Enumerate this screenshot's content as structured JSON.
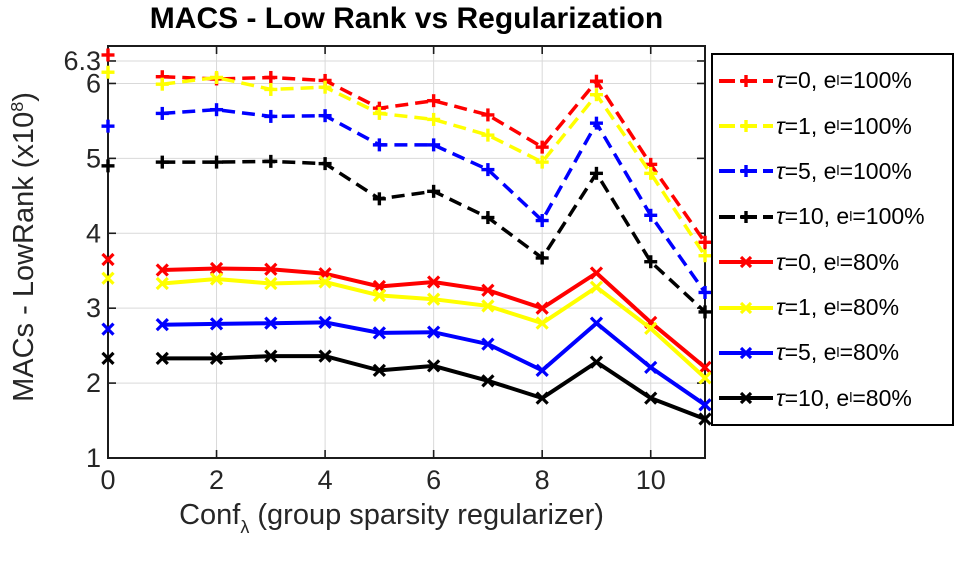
{
  "figure": {
    "title": "MACS - Low Rank vs Regularization",
    "xlabel": {
      "pre": "Conf",
      "sub": "λ",
      "post": " (group sparsity regularizer)"
    },
    "ylabel": {
      "pre": "MACs - LowRank (x10",
      "sup": "8",
      "post": ")"
    }
  },
  "chart_data": {
    "type": "line",
    "title": "MACS - Low Rank vs Regularization",
    "xlabel": "Conf_λ (group sparsity regularizer)",
    "ylabel": "MACs - LowRank (x10^8)",
    "x": [
      0,
      1,
      2,
      3,
      4,
      5,
      6,
      7,
      8,
      9,
      10,
      11
    ],
    "xlim": [
      0,
      11
    ],
    "ylim": [
      1,
      6.5
    ],
    "xticks": [
      0,
      2,
      4,
      6,
      8,
      10
    ],
    "xtick_labels": [
      "0",
      "2",
      "4",
      "6",
      "8",
      "10"
    ],
    "yticks": [
      1,
      2,
      3,
      4,
      5,
      6,
      6.3
    ],
    "ytick_labels": [
      "1",
      "2",
      "3",
      "4",
      "5",
      "6",
      "6.3"
    ],
    "grid": true,
    "legend_position": "outside-right",
    "line_starts_at_index": 1,
    "series": [
      {
        "name": "τ=0, e_l=100%",
        "label": {
          "pre": "τ=0, e",
          "sub": "l",
          "post": "=100%"
        },
        "color": "#ff0000",
        "line_style": "dashed",
        "marker": "plus",
        "values": [
          6.38,
          6.09,
          6.06,
          6.08,
          6.04,
          5.67,
          5.77,
          5.58,
          5.15,
          6.03,
          4.92,
          3.88
        ]
      },
      {
        "name": "τ=1, e_l=100%",
        "label": {
          "pre": "τ=1, e",
          "sub": "l",
          "post": "=100%"
        },
        "color": "#ffff00",
        "line_style": "dashed",
        "marker": "plus",
        "values": [
          6.15,
          5.99,
          6.08,
          5.92,
          5.95,
          5.6,
          5.52,
          5.31,
          4.95,
          5.85,
          4.8,
          3.7
        ]
      },
      {
        "name": "τ=5, e_l=100%",
        "label": {
          "pre": "τ=5, e",
          "sub": "l",
          "post": "=100%"
        },
        "color": "#0000ff",
        "line_style": "dashed",
        "marker": "plus",
        "values": [
          5.43,
          5.6,
          5.65,
          5.56,
          5.57,
          5.18,
          5.18,
          4.85,
          4.17,
          5.47,
          4.24,
          3.21
        ]
      },
      {
        "name": "τ=10, e_l=100%",
        "label": {
          "pre": "τ=10, e",
          "sub": "l",
          "post": "=100%"
        },
        "color": "#000000",
        "line_style": "dashed",
        "marker": "plus",
        "values": [
          4.9,
          4.95,
          4.95,
          4.96,
          4.93,
          4.46,
          4.56,
          4.21,
          3.67,
          4.8,
          3.62,
          2.95
        ]
      },
      {
        "name": "τ=0, e_l=80%",
        "label": {
          "pre": "τ=0, e",
          "sub": "l",
          "post": "=80%"
        },
        "color": "#ff0000",
        "line_style": "solid",
        "marker": "x",
        "values": [
          3.65,
          3.51,
          3.53,
          3.52,
          3.46,
          3.29,
          3.35,
          3.24,
          3.0,
          3.47,
          2.81,
          2.21
        ]
      },
      {
        "name": "τ=1, e_l=80%",
        "label": {
          "pre": "τ=1, e",
          "sub": "l",
          "post": "=80%"
        },
        "color": "#ffff00",
        "line_style": "solid",
        "marker": "x",
        "values": [
          3.4,
          3.33,
          3.39,
          3.33,
          3.35,
          3.17,
          3.12,
          3.03,
          2.8,
          3.28,
          2.73,
          2.07
        ]
      },
      {
        "name": "τ=5, e_l=80%",
        "label": {
          "pre": "τ=5, e",
          "sub": "l",
          "post": "=80%"
        },
        "color": "#0000ff",
        "line_style": "solid",
        "marker": "x",
        "values": [
          2.72,
          2.78,
          2.79,
          2.8,
          2.81,
          2.67,
          2.68,
          2.52,
          2.17,
          2.8,
          2.21,
          1.71
        ]
      },
      {
        "name": "τ=10, e_l=80%",
        "label": {
          "pre": "τ=10, e",
          "sub": "l",
          "post": "=80%"
        },
        "color": "#000000",
        "line_style": "solid",
        "marker": "x",
        "values": [
          2.33,
          2.33,
          2.33,
          2.36,
          2.36,
          2.17,
          2.23,
          2.03,
          1.8,
          2.28,
          1.8,
          1.52
        ]
      }
    ],
    "colors": {
      "grid": "#d9d9d9",
      "axis": "#1c1c1c",
      "tick_label": "#262626",
      "title": "#000000",
      "legend_border": "#000000",
      "background": "#ffffff"
    }
  }
}
